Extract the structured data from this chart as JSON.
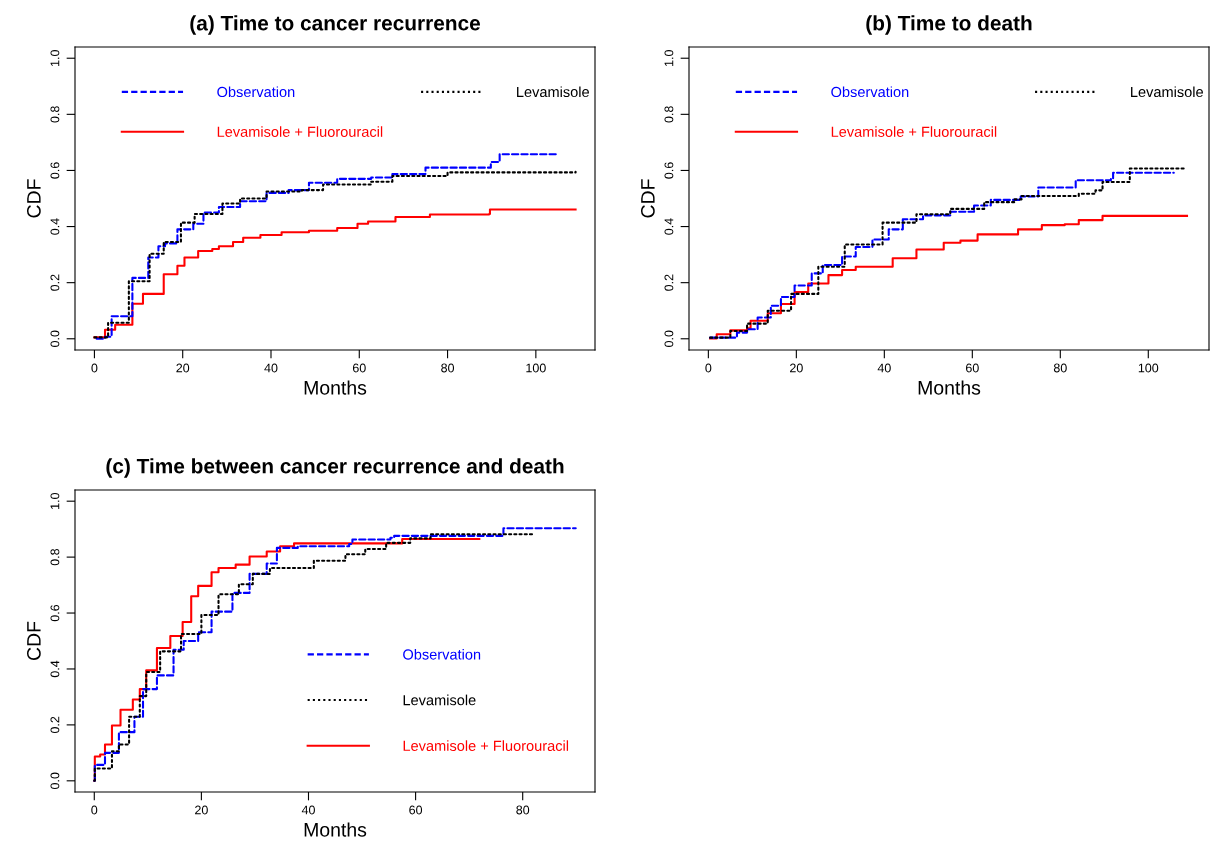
{
  "chart_data": [
    {
      "type": "step",
      "title": "(a) Time to cancer recurrence",
      "xlabel": "Months",
      "ylabel": "CDF",
      "xlim": [
        -4.4,
        113.4
      ],
      "xticks": [
        0,
        20,
        40,
        60,
        80,
        100
      ],
      "ylim": [
        -0.04,
        1.04
      ],
      "yticks": [
        {
          "value": 0,
          "label": "0.0"
        },
        {
          "value": 0.2,
          "label": "0.2"
        },
        {
          "value": 0.4,
          "label": "0.4"
        },
        {
          "value": 0.6,
          "label": "0.6"
        },
        {
          "value": 0.8,
          "label": "0.8"
        },
        {
          "value": 1,
          "label": "1.0"
        }
      ],
      "legend": "top",
      "series": [
        {
          "name": "Observation",
          "color": "#0000ff",
          "line_style": "dashed",
          "x": [
            0.5,
            2.4,
            3.9,
            8.6,
            12.2,
            14.5,
            16,
            18.8,
            22.4,
            24.7,
            28.2,
            33,
            39,
            44,
            48.6,
            55,
            62.7,
            67.5,
            75,
            88.2,
            89.8,
            91.8,
            104.7
          ],
          "values": [
            0,
            0.007,
            0.08,
            0.217,
            0.29,
            0.33,
            0.34,
            0.39,
            0.41,
            0.45,
            0.47,
            0.49,
            0.52,
            0.53,
            0.556,
            0.57,
            0.575,
            0.587,
            0.61,
            0.61,
            0.63,
            0.658,
            0.658
          ]
        },
        {
          "name": "Levamisole",
          "color": "#000000",
          "line_style": "dotted",
          "x": [
            0,
            3.1,
            7.8,
            12.5,
            15.7,
            19.6,
            22.7,
            29,
            33,
            39,
            47,
            51.8,
            62.7,
            67.5,
            80,
            109
          ],
          "values": [
            0.005,
            0.057,
            0.205,
            0.303,
            0.345,
            0.414,
            0.445,
            0.482,
            0.5,
            0.525,
            0.53,
            0.55,
            0.56,
            0.58,
            0.593,
            0.595
          ]
        },
        {
          "name": "Levamisole + Fluorouracil",
          "color": "#ff0000",
          "line_style": "solid",
          "x": [
            0,
            2.4,
            4.7,
            8.6,
            11,
            15.7,
            18.8,
            20.4,
            23.5,
            26.7,
            28.2,
            31.4,
            33.7,
            37.6,
            42.4,
            48.6,
            55,
            59.6,
            62,
            66.7,
            68.2,
            76,
            89.4,
            89.6,
            109
          ],
          "values": [
            0.005,
            0.032,
            0.05,
            0.125,
            0.16,
            0.23,
            0.26,
            0.29,
            0.313,
            0.32,
            0.33,
            0.345,
            0.36,
            0.37,
            0.38,
            0.385,
            0.395,
            0.41,
            0.418,
            0.418,
            0.434,
            0.443,
            0.445,
            0.461,
            0.461
          ]
        }
      ]
    },
    {
      "type": "step",
      "title": "(b) Time to death",
      "xlabel": "Months",
      "ylabel": "CDF",
      "xlim": [
        -4.4,
        113.8
      ],
      "xticks": [
        0,
        20,
        40,
        60,
        80,
        100
      ],
      "ylim": [
        -0.04,
        1.04
      ],
      "yticks": [
        {
          "value": 0,
          "label": "0.0"
        },
        {
          "value": 0.2,
          "label": "0.2"
        },
        {
          "value": 0.4,
          "label": "0.4"
        },
        {
          "value": 0.6,
          "label": "0.6"
        },
        {
          "value": 0.8,
          "label": "0.8"
        },
        {
          "value": 1,
          "label": "1.0"
        }
      ],
      "legend": "top",
      "series": [
        {
          "name": "Observation",
          "color": "#0000ff",
          "line_style": "dashed",
          "x": [
            0.4,
            3.8,
            6.5,
            8.8,
            11.2,
            14.2,
            16.5,
            19.6,
            23.5,
            26,
            30.4,
            33.5,
            37.3,
            41,
            44.2,
            48.8,
            55,
            60.4,
            64.2,
            71,
            75,
            83.5,
            91.5,
            92,
            105.8
          ],
          "values": [
            0.004,
            0.004,
            0.022,
            0.034,
            0.076,
            0.118,
            0.149,
            0.19,
            0.233,
            0.263,
            0.293,
            0.327,
            0.354,
            0.39,
            0.426,
            0.44,
            0.453,
            0.475,
            0.495,
            0.507,
            0.539,
            0.565,
            0.571,
            0.592,
            0.592
          ]
        },
        {
          "name": "Levamisole",
          "color": "#000000",
          "line_style": "dotted",
          "x": [
            0.4,
            5,
            8.8,
            13.5,
            18.8,
            25,
            31,
            39.6,
            47.3,
            55,
            62.7,
            69.6,
            71.2,
            79.8,
            84.2,
            88,
            89.6,
            95.4,
            95.8,
            108.5
          ],
          "values": [
            0.004,
            0.028,
            0.054,
            0.1,
            0.16,
            0.257,
            0.336,
            0.414,
            0.444,
            0.463,
            0.487,
            0.497,
            0.509,
            0.509,
            0.517,
            0.529,
            0.559,
            0.559,
            0.607,
            0.607
          ]
        },
        {
          "name": "Levamisole + Fluorouracil",
          "color": "#ff0000",
          "line_style": "solid",
          "x": [
            0.4,
            1.9,
            5,
            8.8,
            9.6,
            13.5,
            16.5,
            19.6,
            22.7,
            27.3,
            30.4,
            33.5,
            37.3,
            41.9,
            47.3,
            53.5,
            57.3,
            61.2,
            65,
            70.4,
            75.8,
            81,
            84.2,
            89,
            89.6,
            108.8
          ],
          "values": [
            0.001,
            0.016,
            0.03,
            0.037,
            0.064,
            0.091,
            0.124,
            0.167,
            0.197,
            0.227,
            0.245,
            0.257,
            0.257,
            0.287,
            0.318,
            0.342,
            0.35,
            0.372,
            0.372,
            0.39,
            0.405,
            0.408,
            0.423,
            0.423,
            0.438,
            0.438
          ]
        }
      ]
    },
    {
      "type": "step",
      "title": "(c) Time between cancer recurrence and death",
      "xlabel": "Months",
      "ylabel": "CDF",
      "xlim": [
        -3.6,
        93.5
      ],
      "xticks": [
        0,
        20,
        40,
        60,
        80
      ],
      "ylim": [
        -0.04,
        1.04
      ],
      "yticks": [
        {
          "value": 0,
          "label": "0.0"
        },
        {
          "value": 0.2,
          "label": "0.2"
        },
        {
          "value": 0.4,
          "label": "0.4"
        },
        {
          "value": 0.6,
          "label": "0.6"
        },
        {
          "value": 0.8,
          "label": "0.8"
        },
        {
          "value": 1,
          "label": "1.0"
        }
      ],
      "legend": "right",
      "series": [
        {
          "name": "Observation",
          "color": "#0000ff",
          "line_style": "dashed",
          "x": [
            0,
            0.1,
            2,
            4.6,
            7.5,
            9.1,
            11.7,
            14.8,
            16.7,
            19.4,
            21.9,
            25.8,
            29,
            32.2,
            34.1,
            38,
            47.6,
            48.2,
            55.3,
            56,
            76.1,
            76.4,
            89.9
          ],
          "values": [
            0,
            0.057,
            0.1,
            0.174,
            0.229,
            0.328,
            0.377,
            0.469,
            0.5,
            0.531,
            0.605,
            0.672,
            0.74,
            0.777,
            0.833,
            0.839,
            0.847,
            0.863,
            0.869,
            0.876,
            0.876,
            0.903,
            0.903
          ]
        },
        {
          "name": "Levamisole",
          "color": "#000000",
          "line_style": "dotted",
          "x": [
            0,
            0.1,
            3.3,
            4.6,
            6.5,
            8.5,
            9.7,
            12.3,
            16.2,
            20,
            23.2,
            27,
            29.6,
            32.8,
            37.9,
            41,
            45.6,
            46.9,
            50.6,
            54.5,
            59,
            62.8,
            82.2
          ],
          "values": [
            0,
            0.044,
            0.106,
            0.13,
            0.229,
            0.303,
            0.389,
            0.463,
            0.525,
            0.593,
            0.667,
            0.703,
            0.74,
            0.761,
            0.761,
            0.787,
            0.787,
            0.81,
            0.829,
            0.851,
            0.867,
            0.882,
            0.882
          ]
        },
        {
          "name": "Levamisole + Fluorouracil",
          "color": "#ff0000",
          "line_style": "solid",
          "x": [
            0,
            0.1,
            1.1,
            2,
            3.3,
            4.9,
            7.2,
            8.5,
            9.7,
            11.7,
            14.2,
            16.5,
            18.1,
            19.4,
            21.9,
            23.2,
            26.4,
            29,
            32.2,
            34.7,
            37.3,
            57.2,
            57.5,
            71.9
          ],
          "values": [
            0,
            0.087,
            0.094,
            0.13,
            0.198,
            0.254,
            0.291,
            0.328,
            0.395,
            0.475,
            0.518,
            0.568,
            0.66,
            0.697,
            0.746,
            0.761,
            0.773,
            0.802,
            0.82,
            0.839,
            0.849,
            0.849,
            0.865,
            0.865
          ]
        }
      ]
    }
  ]
}
